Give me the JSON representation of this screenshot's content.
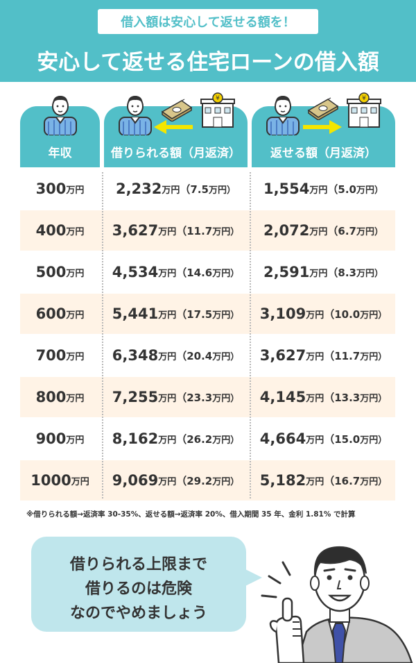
{
  "header": {
    "subtitle": "借入額は安心して返せる額を！",
    "title": "安心して返せる住宅ローンの借入額"
  },
  "columns": [
    {
      "label": "年収"
    },
    {
      "label": "借りられる額（月返済）"
    },
    {
      "label": "返せる額（月返済）"
    }
  ],
  "icons": {
    "person": "person-icon",
    "money": "money-bundle-icon",
    "bank": "bank-icon",
    "arrow_left": "arrow-left-icon",
    "arrow_right": "arrow-right-icon"
  },
  "rows": [
    {
      "income": "300",
      "income_unit": "万円",
      "borrow": "2,232",
      "borrow_unit": "万円",
      "borrow_monthly": "（7.5",
      "borrow_monthly_unit": "万円）",
      "repay": "1,554",
      "repay_unit": "万円",
      "repay_monthly": "（5.0",
      "repay_monthly_unit": "万円）"
    },
    {
      "income": "400",
      "income_unit": "万円",
      "borrow": "3,627",
      "borrow_unit": "万円",
      "borrow_monthly": "（11.7",
      "borrow_monthly_unit": "万円）",
      "repay": "2,072",
      "repay_unit": "万円",
      "repay_monthly": "（6.7",
      "repay_monthly_unit": "万円）"
    },
    {
      "income": "500",
      "income_unit": "万円",
      "borrow": "4,534",
      "borrow_unit": "万円",
      "borrow_monthly": "（14.6",
      "borrow_monthly_unit": "万円）",
      "repay": "2,591",
      "repay_unit": "万円",
      "repay_monthly": "（8.3",
      "repay_monthly_unit": "万円）"
    },
    {
      "income": "600",
      "income_unit": "万円",
      "borrow": "5,441",
      "borrow_unit": "万円",
      "borrow_monthly": "（17.5",
      "borrow_monthly_unit": "万円）",
      "repay": "3,109",
      "repay_unit": "万円",
      "repay_monthly": "（10.0",
      "repay_monthly_unit": "万円）"
    },
    {
      "income": "700",
      "income_unit": "万円",
      "borrow": "6,348",
      "borrow_unit": "万円",
      "borrow_monthly": "（20.4",
      "borrow_monthly_unit": "万円）",
      "repay": "3,627",
      "repay_unit": "万円",
      "repay_monthly": "（11.7",
      "repay_monthly_unit": "万円）"
    },
    {
      "income": "800",
      "income_unit": "万円",
      "borrow": "7,255",
      "borrow_unit": "万円",
      "borrow_monthly": "（23.3",
      "borrow_monthly_unit": "万円）",
      "repay": "4,145",
      "repay_unit": "万円",
      "repay_monthly": "（13.3",
      "repay_monthly_unit": "万円）"
    },
    {
      "income": "900",
      "income_unit": "万円",
      "borrow": "8,162",
      "borrow_unit": "万円",
      "borrow_monthly": "（26.2",
      "borrow_monthly_unit": "万円）",
      "repay": "4,664",
      "repay_unit": "万円",
      "repay_monthly": "（15.0",
      "repay_monthly_unit": "万円）"
    },
    {
      "income": "1000",
      "income_unit": "万円",
      "borrow": "9,069",
      "borrow_unit": "万円",
      "borrow_monthly": "（29.2",
      "borrow_monthly_unit": "万円）",
      "repay": "5,182",
      "repay_unit": "万円",
      "repay_monthly": "（16.7",
      "repay_monthly_unit": "万円）"
    }
  ],
  "note": "※借りられる額→返済率 30-35%、返せる額→返済率 20%、借入期間 35 年、金利 1.81% で計算",
  "bubble": {
    "lines": [
      "借りられる上限まで",
      "借りるのは危険",
      "なのでやめましょう"
    ]
  },
  "colors": {
    "teal": "#52bfc8",
    "row_alt": "#fff3e6",
    "bubble": "#bfe6ec",
    "arrow": "#f4e600",
    "tie": "#3f51a8"
  }
}
